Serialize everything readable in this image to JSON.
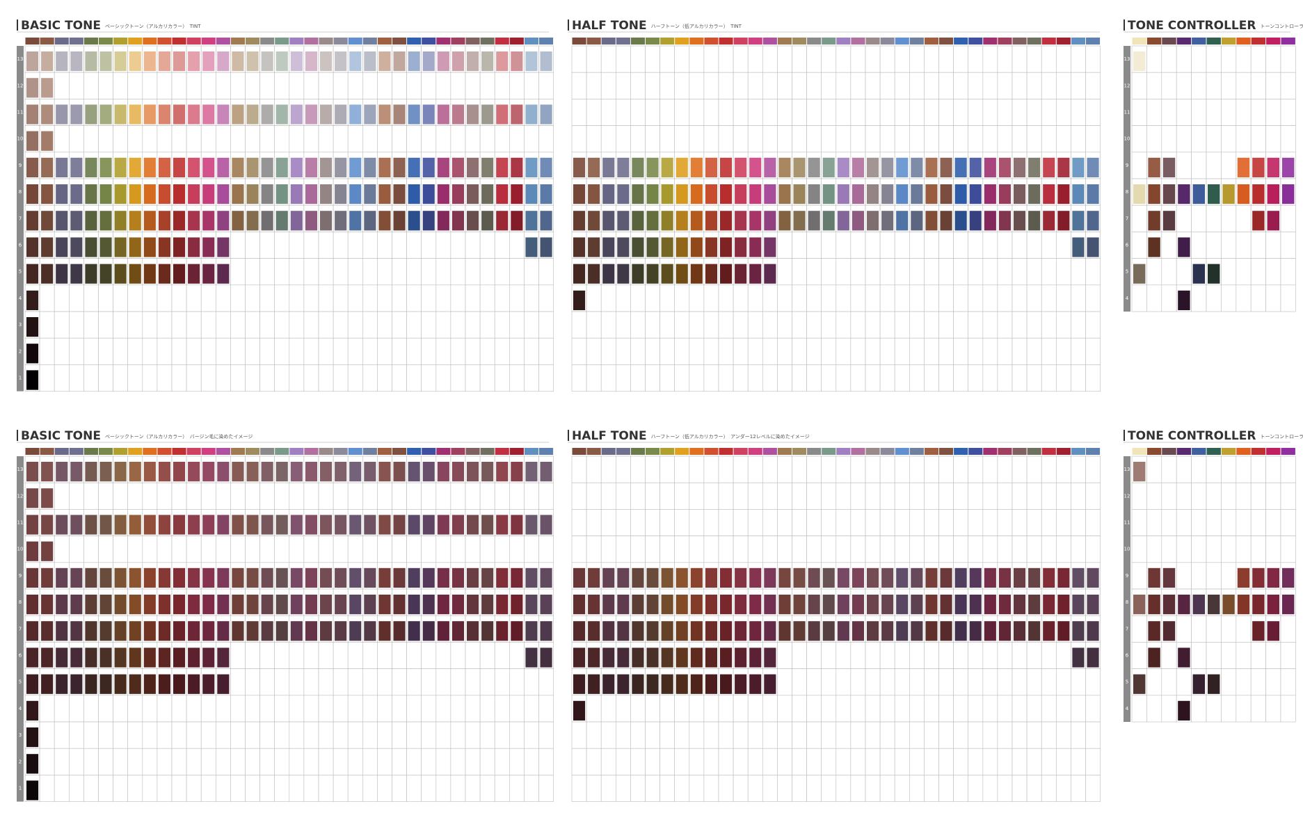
{
  "panels": {
    "basic": {
      "title": "BASIC TONE",
      "subtitle_top": "ベーシックトーン（アルカリカラー）　TINT",
      "subtitle_bottom": "ベーシックトーン（アルカリカラー）　バージン毛に染めたイメージ",
      "levels": [
        13,
        12,
        11,
        10,
        9,
        8,
        7,
        6,
        5,
        4,
        3,
        2,
        1
      ]
    },
    "half": {
      "title": "HALF TONE",
      "subtitle_top": "ハーフトーン（低アルカリカラー）　TINT",
      "subtitle_bottom": "ハーフトーン（低アルカリカラー）　アンダー12レベルに染めたイメージ"
    },
    "controller": {
      "title": "TONE CONTROLLER",
      "subtitle_top": "トーンコントローラー（アルカリカラー）　TINT",
      "subtitle_bottom": "トーンコントローラー（アルカリカラー）　バージン毛に染めたイメージ",
      "levels": [
        13,
        12,
        11,
        10,
        9,
        8,
        7,
        6,
        5,
        4
      ],
      "columns": [
        {
          "color": "#f0e4b8",
          "levels": [
            13,
            8,
            5
          ]
        },
        {
          "color": "#8a4a30",
          "levels": [
            9,
            8,
            7,
            6
          ]
        },
        {
          "color": "#6a4a50",
          "levels": [
            9,
            8,
            7
          ]
        },
        {
          "color": "#5a2a70",
          "levels": [
            8,
            6,
            4
          ]
        },
        {
          "color": "#4060a0",
          "levels": [
            8,
            5
          ]
        },
        {
          "color": "#306050",
          "levels": [
            8,
            5
          ]
        },
        {
          "color": "#c0a030",
          "levels": [
            8
          ]
        },
        {
          "color": "#e06020",
          "levels": [
            9,
            8
          ]
        },
        {
          "color": "#c03030",
          "levels": [
            9,
            8,
            7
          ]
        },
        {
          "color": "#c02060",
          "levels": [
            9,
            8,
            7
          ]
        },
        {
          "color": "#9030a0",
          "levels": [
            9,
            8
          ]
        }
      ]
    }
  },
  "columns": [
    {
      "color": "#7a4a3a",
      "basic": [
        13,
        12,
        11,
        10,
        9,
        8,
        7,
        6,
        5,
        4,
        3,
        2,
        1
      ],
      "half": [
        9,
        8,
        7,
        6,
        5,
        4
      ]
    },
    {
      "color": "#8a5a44",
      "basic": [
        13,
        12,
        11,
        10,
        9,
        8,
        7,
        6,
        5
      ],
      "half": [
        9,
        8,
        7,
        6,
        5
      ]
    },
    {
      "color": "#6a6a8a",
      "basic": [
        13,
        11,
        9,
        8,
        7,
        6,
        5
      ],
      "half": [
        9,
        8,
        7,
        6,
        5
      ]
    },
    {
      "color": "#707090",
      "basic": [
        13,
        11,
        9,
        8,
        7,
        6,
        5
      ],
      "half": [
        9,
        8,
        7,
        6,
        5
      ]
    },
    {
      "color": "#6a7a4a",
      "basic": [
        13,
        11,
        9,
        8,
        7,
        6,
        5
      ],
      "half": [
        9,
        8,
        7,
        6,
        5
      ]
    },
    {
      "color": "#7a8a4a",
      "basic": [
        13,
        11,
        9,
        8,
        7,
        6,
        5
      ],
      "half": [
        9,
        8,
        7,
        6,
        5
      ]
    },
    {
      "color": "#b0a030",
      "basic": [
        13,
        11,
        9,
        8,
        7,
        6,
        5
      ],
      "half": [
        9,
        8,
        7,
        6,
        5
      ]
    },
    {
      "color": "#e0a020",
      "basic": [
        13,
        11,
        9,
        8,
        7,
        6,
        5
      ],
      "half": [
        9,
        8,
        7,
        6,
        5
      ]
    },
    {
      "color": "#e07020",
      "basic": [
        13,
        11,
        9,
        8,
        7,
        6,
        5
      ],
      "half": [
        9,
        8,
        7,
        6,
        5
      ]
    },
    {
      "color": "#d05030",
      "basic": [
        13,
        11,
        9,
        8,
        7,
        6,
        5
      ],
      "half": [
        9,
        8,
        7,
        6,
        5
      ]
    },
    {
      "color": "#c03030",
      "basic": [
        13,
        11,
        9,
        8,
        7,
        6,
        5
      ],
      "half": [
        9,
        8,
        7,
        6,
        5
      ]
    },
    {
      "color": "#d04060",
      "basic": [
        13,
        11,
        9,
        8,
        7,
        6,
        5
      ],
      "half": [
        9,
        8,
        7,
        6,
        5
      ]
    },
    {
      "color": "#d04080",
      "basic": [
        13,
        11,
        9,
        8,
        7,
        6,
        5
      ],
      "half": [
        9,
        8,
        7,
        6,
        5
      ]
    },
    {
      "color": "#b050a0",
      "basic": [
        13,
        11,
        9,
        8,
        7,
        6,
        5
      ],
      "half": [
        9,
        8,
        7,
        6,
        5
      ]
    },
    {
      "color": "#a07a50",
      "basic": [
        13,
        11,
        9,
        8,
        7
      ],
      "half": [
        9,
        8,
        7
      ]
    },
    {
      "color": "#a08a60",
      "basic": [
        13,
        11,
        9,
        8,
        7
      ],
      "half": [
        9,
        8,
        7
      ]
    },
    {
      "color": "#8a8a8a",
      "basic": [
        13,
        11,
        9,
        8,
        7
      ],
      "half": [
        9,
        8,
        7
      ]
    },
    {
      "color": "#7a9a8a",
      "basic": [
        13,
        11,
        9,
        8,
        7
      ],
      "half": [
        9,
        8,
        7
      ]
    },
    {
      "color": "#a080c0",
      "basic": [
        13,
        11,
        9,
        8,
        7
      ],
      "half": [
        9,
        8,
        7
      ]
    },
    {
      "color": "#b070a0",
      "basic": [
        13,
        11,
        9,
        8,
        7
      ],
      "half": [
        9,
        8,
        7
      ]
    },
    {
      "color": "#9a8a8a",
      "basic": [
        13,
        11,
        9,
        8,
        7
      ],
      "half": [
        9,
        8,
        7
      ]
    },
    {
      "color": "#8a8a9a",
      "basic": [
        13,
        11,
        9,
        8,
        7
      ],
      "half": [
        9,
        8,
        7
      ]
    },
    {
      "color": "#6090d0",
      "basic": [
        13,
        11,
        9,
        8,
        7
      ],
      "half": [
        9,
        8,
        7
      ]
    },
    {
      "color": "#7080a0",
      "basic": [
        13,
        11,
        9,
        8,
        7
      ],
      "half": [
        9,
        8,
        7
      ]
    },
    {
      "color": "#a06040",
      "basic": [
        13,
        11,
        9,
        8,
        7
      ],
      "half": [
        9,
        8,
        7
      ]
    },
    {
      "color": "#805040",
      "basic": [
        13,
        11,
        9,
        8,
        7
      ],
      "half": [
        9,
        8,
        7
      ]
    },
    {
      "color": "#3060b0",
      "basic": [
        13,
        11,
        9,
        8,
        7
      ],
      "half": [
        9,
        8,
        7
      ]
    },
    {
      "color": "#4050a0",
      "basic": [
        13,
        11,
        9,
        8,
        7
      ],
      "half": [
        9,
        8,
        7
      ]
    },
    {
      "color": "#a03070",
      "basic": [
        13,
        11,
        9,
        8,
        7
      ],
      "half": [
        9,
        8,
        7
      ]
    },
    {
      "color": "#a04060",
      "basic": [
        13,
        11,
        9,
        8,
        7
      ],
      "half": [
        9,
        8,
        7
      ]
    },
    {
      "color": "#806060",
      "basic": [
        13,
        11,
        9,
        8,
        7
      ],
      "half": [
        9,
        8,
        7
      ]
    },
    {
      "color": "#707060",
      "basic": [
        13,
        11,
        9,
        8,
        7
      ],
      "half": [
        9,
        8,
        7
      ]
    },
    {
      "color": "#c03040",
      "basic": [
        13,
        11,
        9,
        8,
        7
      ],
      "half": [
        9,
        8,
        7
      ]
    },
    {
      "color": "#a02030",
      "basic": [
        13,
        11,
        9,
        8,
        7
      ],
      "half": [
        9,
        8,
        7
      ]
    },
    {
      "color": "#6090c0",
      "basic": [
        13,
        11,
        9,
        8,
        7,
        6
      ],
      "half": [
        9,
        8,
        7,
        6
      ]
    },
    {
      "color": "#6080b0",
      "basic": [
        13,
        11,
        9,
        8,
        7,
        6
      ],
      "half": [
        9,
        8,
        7,
        6
      ]
    }
  ]
}
